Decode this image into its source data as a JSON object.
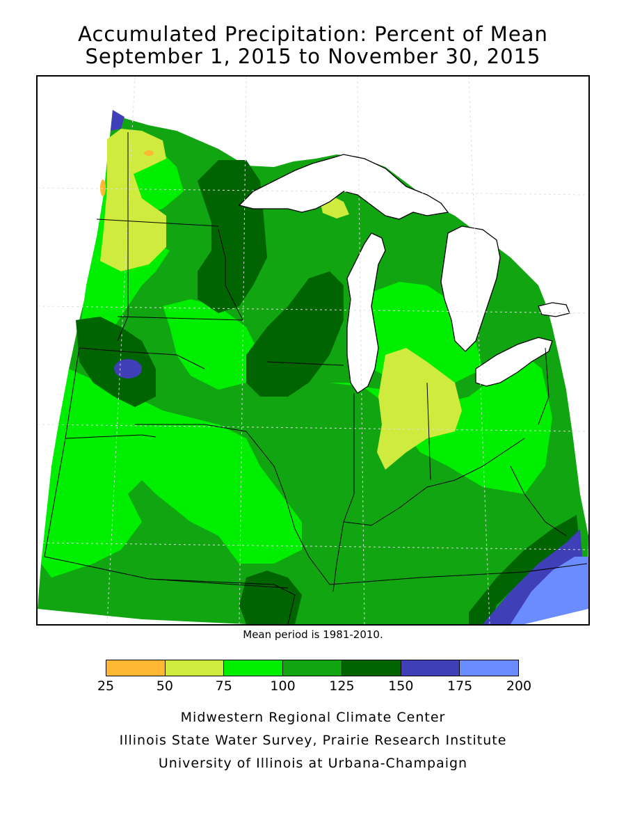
{
  "title": {
    "line1": "Accumulated Precipitation: Percent of Mean",
    "line2": "September 1, 2015 to November 30, 2015"
  },
  "map": {
    "region": "Midwestern United States",
    "variable": "Accumulated precipitation, percent of mean",
    "lake_color": "#ffffff",
    "border_color": "#000000",
    "grid_color": "#dddddd"
  },
  "note": "Mean period is 1981-2010.",
  "legend": {
    "bins": [
      {
        "range": "25-50",
        "color": "#ffb833"
      },
      {
        "range": "50-75",
        "color": "#cfeb3d"
      },
      {
        "range": "75-100",
        "color": "#00ee00"
      },
      {
        "range": "100-125",
        "color": "#11a611"
      },
      {
        "range": "125-150",
        "color": "#006400"
      },
      {
        "range": "150-175",
        "color": "#3f3fb8"
      },
      {
        "range": "175-200",
        "color": "#6b8cff"
      }
    ],
    "ticks": [
      "25",
      "50",
      "75",
      "100",
      "125",
      "150",
      "175",
      "200"
    ]
  },
  "credits": {
    "line1": "Midwestern Regional Climate Center",
    "line2": "Illinois State Water Survey, Prairie Research Institute",
    "line3": "University of Illinois at Urbana-Champaign"
  }
}
